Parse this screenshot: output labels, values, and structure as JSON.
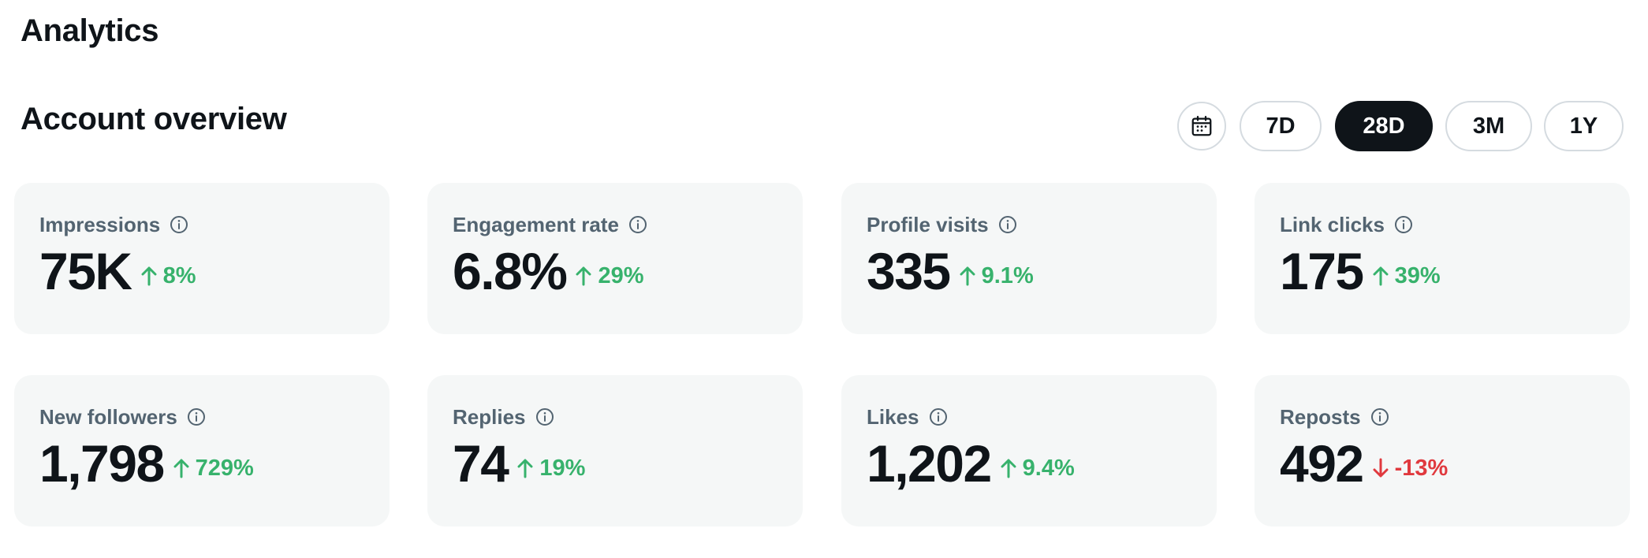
{
  "page": {
    "title": "Analytics"
  },
  "overview": {
    "title": "Account overview",
    "calendar_icon": "calendar-icon",
    "ranges": [
      {
        "label": "7D",
        "active": false
      },
      {
        "label": "28D",
        "active": true
      },
      {
        "label": "3M",
        "active": false
      },
      {
        "label": "1Y",
        "active": false
      }
    ]
  },
  "colors": {
    "positive": "#37b26c",
    "negative": "#e0393e",
    "card_bg": "#f5f7f7",
    "active_range_bg": "#0f1419"
  },
  "metrics": [
    {
      "label": "Impressions",
      "value": "75K",
      "change": "8%",
      "direction": "up"
    },
    {
      "label": "Engagement rate",
      "value": "6.8%",
      "change": "29%",
      "direction": "up"
    },
    {
      "label": "Profile visits",
      "value": "335",
      "change": "9.1%",
      "direction": "up"
    },
    {
      "label": "Link clicks",
      "value": "175",
      "change": "39%",
      "direction": "up"
    },
    {
      "label": "New followers",
      "value": "1,798",
      "change": "729%",
      "direction": "up"
    },
    {
      "label": "Replies",
      "value": "74",
      "change": "19%",
      "direction": "up"
    },
    {
      "label": "Likes",
      "value": "1,202",
      "change": "9.4%",
      "direction": "up"
    },
    {
      "label": "Reposts",
      "value": "492",
      "change": "-13%",
      "direction": "down"
    }
  ]
}
